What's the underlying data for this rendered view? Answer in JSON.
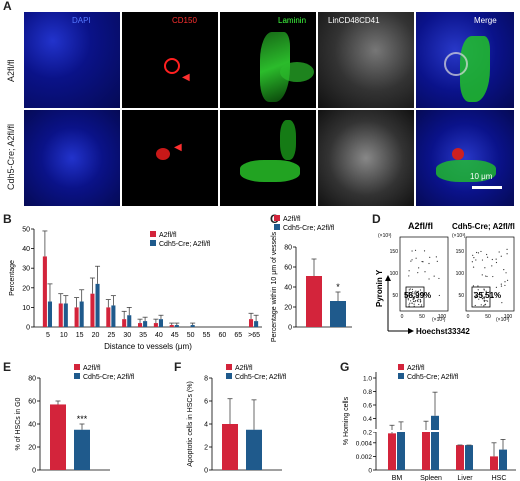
{
  "panels": {
    "A": "A",
    "B": "B",
    "C": "C",
    "D": "D",
    "E": "E",
    "F": "F",
    "G": "G"
  },
  "micrograph": {
    "columns": [
      "DAPI",
      "CD150",
      "Laminin",
      "LinCD48CD41",
      "Merge"
    ],
    "column_colors": [
      "#3a5cff",
      "#ff2a2a",
      "#3cff3c",
      "#ffffff",
      "#ffffff"
    ],
    "rows": [
      "A2fl/fl",
      "Cdh5-Cre; A2fl/fl"
    ],
    "scale_bar": "10 μm"
  },
  "legend": {
    "control": "A2fl/fl",
    "ko": "Cdh5-Cre; A2fl/fl",
    "control_color": "#d3243b",
    "ko_color": "#1f5a8c"
  },
  "flow": {
    "left_title": "A2fl/fl",
    "right_title": "Cdh5-Cre; A2fl/fl",
    "left_pct": "58.99%",
    "right_pct": "35.51%",
    "y_label": "Pyronin Y",
    "x_label": "Hoechst33342",
    "exp_label": "(×10³)",
    "y_ticks": [
      "150",
      "100",
      "50"
    ],
    "x_ticks": [
      "0",
      "50",
      "100"
    ]
  },
  "chart_data": [
    {
      "panel": "B",
      "type": "bar",
      "categories": [
        "5",
        "10",
        "15",
        "20",
        "25",
        "30",
        "35",
        "40",
        "45",
        "50",
        "55",
        "60",
        "65",
        ">65"
      ],
      "series": [
        {
          "name": "A2fl/fl",
          "values": [
            36,
            12,
            10,
            17,
            10,
            4,
            2,
            2,
            1,
            0,
            0,
            0,
            0,
            4
          ],
          "errors": [
            13,
            5,
            5,
            8,
            4,
            4,
            2,
            2,
            1,
            0,
            0,
            0,
            0,
            3
          ]
        },
        {
          "name": "Cdh5-Cre; A2fl/fl",
          "values": [
            13,
            12,
            13,
            22,
            11,
            6,
            3,
            4,
            1,
            1,
            0,
            0,
            0,
            3
          ],
          "errors": [
            9,
            4,
            6,
            9,
            5,
            4,
            2,
            2,
            1,
            1,
            0,
            0,
            0,
            3
          ]
        }
      ],
      "xlabel": "Distance to vessels (μm)",
      "ylabel": "Percentage",
      "ylim": [
        0,
        50
      ],
      "yticks": [
        "0",
        "10",
        "20",
        "30",
        "40",
        "50"
      ]
    },
    {
      "panel": "C",
      "type": "bar",
      "categories": [
        "A2fl/fl",
        "Cdh5-Cre; A2fl/fl"
      ],
      "values": [
        51,
        26
      ],
      "errors": [
        17,
        9
      ],
      "ylabel": "Percentage within 10 μm of vessels",
      "ylim": [
        0,
        80
      ],
      "yticks": [
        "0",
        "20",
        "40",
        "60",
        "80"
      ],
      "significance": "*"
    },
    {
      "panel": "E",
      "type": "bar",
      "categories": [
        "A2fl/fl",
        "Cdh5-Cre; A2fl/fl"
      ],
      "values": [
        57,
        35
      ],
      "errors": [
        3,
        5
      ],
      "ylabel": "% of HSCs in G0",
      "ylim": [
        0,
        80
      ],
      "yticks": [
        "0",
        "20",
        "40",
        "60",
        "80"
      ],
      "significance": "***"
    },
    {
      "panel": "F",
      "type": "bar",
      "categories": [
        "A2fl/fl",
        "Cdh5-Cre; A2fl/fl"
      ],
      "values": [
        4.0,
        3.5
      ],
      "errors": [
        2.2,
        2.6
      ],
      "ylabel": "Apoptotic cells in HSCs (%)",
      "ylim": [
        0,
        8
      ],
      "yticks": [
        "0",
        "2",
        "4",
        "6",
        "8"
      ]
    },
    {
      "panel": "G",
      "type": "bar",
      "categories": [
        "BM",
        "Spleen",
        "Liver",
        "HSC"
      ],
      "series": [
        {
          "name": "A2fl/fl",
          "values": [
            0.18,
            0.22,
            0.006,
            0.002
          ],
          "errors": [
            0.12,
            0.14,
            0.0015,
            0.002
          ]
        },
        {
          "name": "Cdh5-Cre; A2fl/fl",
          "values": [
            0.21,
            0.44,
            0.0055,
            0.003
          ],
          "errors": [
            0.14,
            0.35,
            0.001,
            0.0015
          ]
        }
      ],
      "ylabel": "% Homing cells",
      "ylim": [
        0,
        1.0
      ],
      "broken_axis": true,
      "yticks": [
        "0",
        "0.002",
        "0.004",
        "0.2",
        "0.4",
        "0.6",
        "0.8",
        "1.0"
      ]
    }
  ]
}
